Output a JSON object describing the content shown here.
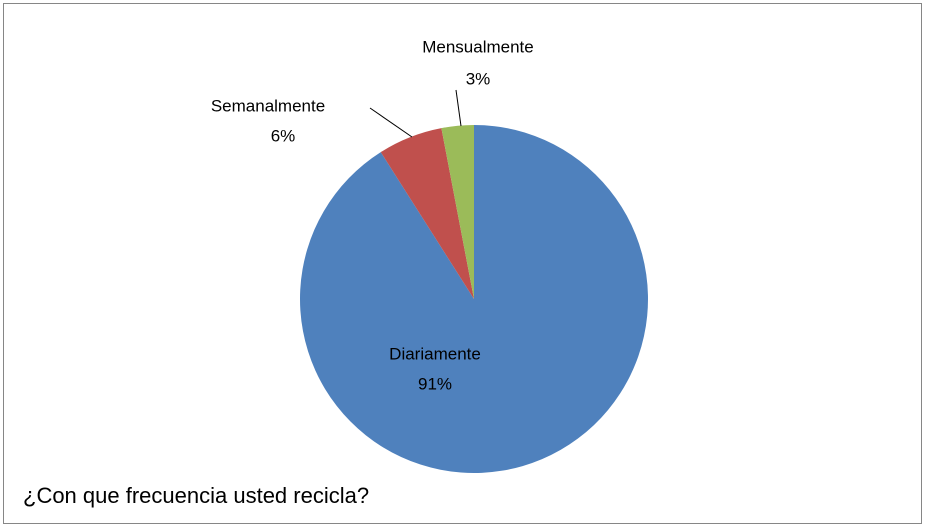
{
  "chart_data": {
    "type": "pie",
    "title": "¿Con que frecuencia usted recicla?",
    "categories": [
      "Diariamente",
      "Semanalmente",
      "Mensualmente"
    ],
    "values": [
      91,
      6,
      3
    ],
    "value_labels": [
      "91%",
      "6%",
      "3%"
    ],
    "colors": [
      "#4f81bd",
      "#c0504d",
      "#9bbb59"
    ]
  }
}
